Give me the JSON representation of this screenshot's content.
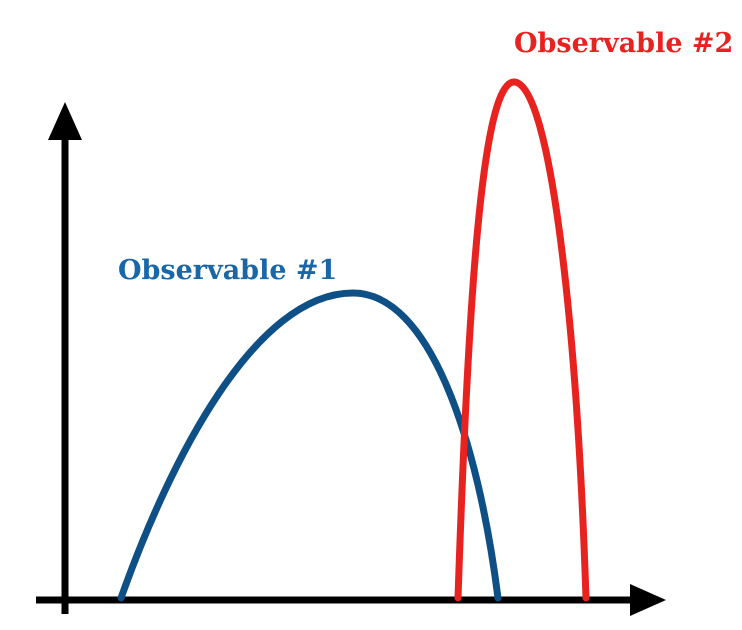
{
  "diagram": {
    "axes": {
      "color": "#000000",
      "x_axis_arrow": true,
      "y_axis_arrow": true
    },
    "curves": [
      {
        "label": "Observable #1",
        "color": "#0e4f86",
        "shape": "broad asymmetric hump"
      },
      {
        "label": "Observable #2",
        "color": "#e8231f",
        "shape": "tall narrow peak"
      }
    ]
  }
}
